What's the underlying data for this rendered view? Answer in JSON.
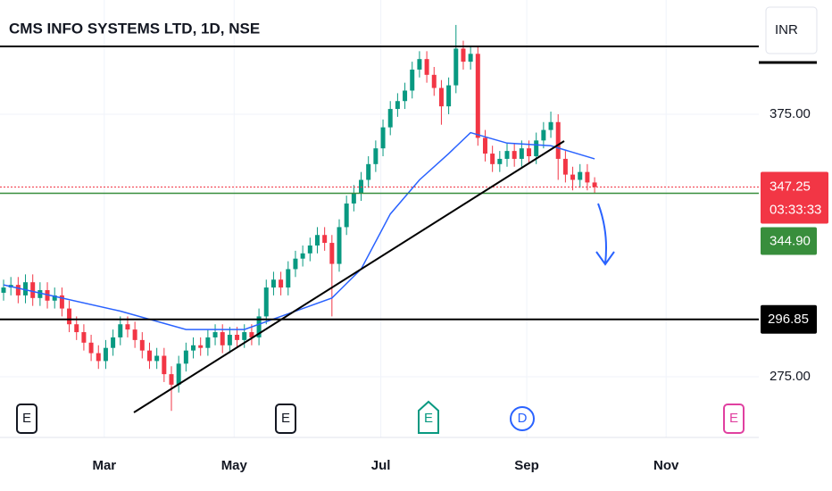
{
  "chart_data": {
    "type": "candlestick",
    "title": "CMS INFO SYSTEMS LTD, 1D, NSE",
    "currency": "INR",
    "up_color": "#089981",
    "down_color": "#f23645",
    "x": [
      0,
      1,
      2,
      3,
      4,
      5,
      6,
      7,
      8,
      9,
      10,
      11,
      12,
      13,
      14,
      15,
      16,
      17,
      18,
      19,
      20,
      21,
      22,
      23,
      24,
      25,
      26,
      27,
      28,
      29,
      30,
      31,
      32,
      33,
      34,
      35,
      36,
      37,
      38,
      39,
      40,
      41,
      42,
      43,
      44,
      45,
      46,
      47,
      48,
      49,
      50,
      51,
      52,
      53,
      54,
      55,
      56,
      57,
      58,
      59,
      60,
      61,
      62,
      63,
      64,
      65,
      66,
      67,
      68,
      69,
      70,
      71,
      72,
      73,
      74,
      75,
      76,
      77,
      78,
      79,
      80,
      81
    ],
    "open": [
      307,
      309,
      310,
      306,
      311,
      305,
      308,
      304,
      306,
      301,
      295,
      292,
      288,
      284,
      281,
      286,
      290,
      295,
      293,
      289,
      285,
      281,
      283,
      276,
      272,
      280,
      285,
      287,
      286,
      290,
      292,
      287,
      291,
      289,
      292,
      290,
      298,
      309,
      312,
      309,
      316,
      320,
      322,
      325,
      329,
      326,
      318,
      332,
      341,
      345,
      350,
      356,
      362,
      370,
      377,
      380,
      384,
      392,
      396,
      390,
      385,
      378,
      386,
      400,
      395,
      398,
      366,
      360,
      356,
      358,
      361,
      358,
      362,
      359,
      365,
      369,
      372,
      358,
      352,
      350,
      353,
      349
    ],
    "high": [
      312,
      313,
      313,
      314,
      314,
      311,
      311,
      309,
      309,
      304,
      298,
      295,
      291,
      287,
      289,
      293,
      298,
      298,
      296,
      292,
      288,
      286,
      286,
      279,
      283,
      288,
      290,
      290,
      293,
      295,
      295,
      294,
      294,
      295,
      295,
      301,
      312,
      315,
      315,
      319,
      323,
      325,
      328,
      332,
      332,
      329,
      335,
      344,
      348,
      353,
      359,
      365,
      373,
      380,
      383,
      387,
      395,
      399,
      399,
      393,
      388,
      389,
      409,
      403,
      401,
      401,
      369,
      363,
      361,
      364,
      364,
      365,
      365,
      368,
      372,
      376,
      375,
      361,
      355,
      356,
      356,
      351
    ],
    "low": [
      304,
      306,
      303,
      303,
      302,
      302,
      301,
      301,
      298,
      292,
      289,
      285,
      281,
      278,
      278,
      283,
      287,
      290,
      286,
      282,
      278,
      278,
      273,
      262,
      269,
      277,
      282,
      283,
      283,
      287,
      284,
      284,
      286,
      286,
      287,
      287,
      295,
      306,
      306,
      306,
      313,
      317,
      319,
      322,
      323,
      298,
      315,
      329,
      338,
      342,
      347,
      353,
      359,
      367,
      374,
      377,
      381,
      389,
      387,
      382,
      371,
      375,
      383,
      392,
      392,
      363,
      357,
      353,
      353,
      355,
      355,
      355,
      356,
      356,
      362,
      366,
      350,
      349,
      346,
      347,
      346,
      345
    ],
    "close": [
      309,
      310,
      306,
      311,
      305,
      308,
      304,
      306,
      301,
      295,
      292,
      288,
      284,
      281,
      286,
      290,
      295,
      293,
      289,
      285,
      281,
      283,
      276,
      272,
      280,
      285,
      287,
      286,
      290,
      292,
      287,
      291,
      289,
      292,
      290,
      298,
      309,
      312,
      309,
      316,
      320,
      322,
      325,
      329,
      326,
      318,
      332,
      341,
      345,
      350,
      356,
      362,
      370,
      377,
      380,
      384,
      392,
      396,
      390,
      385,
      378,
      386,
      400,
      395,
      398,
      366,
      360,
      356,
      358,
      361,
      358,
      362,
      359,
      365,
      369,
      372,
      358,
      352,
      350,
      353,
      349,
      347.25
    ],
    "moving_average": {
      "color": "#2962ff",
      "x": [
        0,
        16,
        25,
        33,
        40,
        45,
        49,
        53,
        57,
        61,
        64,
        69,
        75,
        81
      ],
      "values": [
        310,
        300,
        293,
        293,
        300,
        305,
        316,
        337,
        350,
        360,
        368,
        364,
        363,
        358
      ]
    },
    "xlim": [
      0,
      103.5
    ],
    "xticks": [
      {
        "value": 13.8,
        "label": "Mar"
      },
      {
        "value": 31.6,
        "label": "May"
      },
      {
        "value": 51.7,
        "label": "Jul"
      },
      {
        "value": 71.7,
        "label": "Sep"
      },
      {
        "value": 90.8,
        "label": "Nov"
      }
    ],
    "ylim": [
      251.9,
      418.5
    ],
    "yticks": [
      {
        "value": 375,
        "label": "375.00"
      },
      {
        "value": 275,
        "label": "275.00"
      }
    ],
    "horizontal_line": 296.85,
    "support_line": {
      "value": 344.9,
      "label": "344.90",
      "color": "#388e3c"
    },
    "last_price": {
      "value": 347.25,
      "countdown": "03:33:33"
    },
    "events": [
      "E",
      "E",
      "E",
      "D",
      "E"
    ]
  }
}
